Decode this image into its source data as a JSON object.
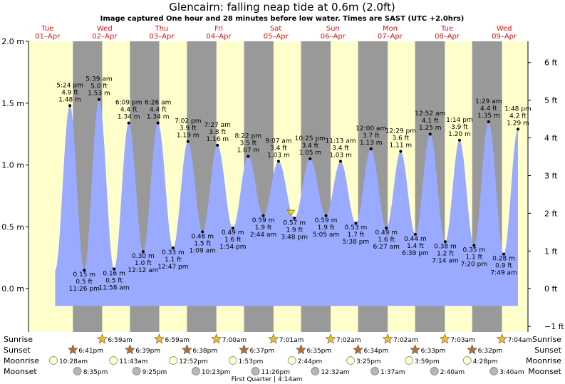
{
  "title": "Glencairn: falling  neap tide at 0.6m (2.0ft)",
  "subtitle": "Image captured One hour and 28 minutes before low water. Times are SAST (UTC +2.0hrs)",
  "days": [
    {
      "dow": "Tue",
      "date": "01–Apr"
    },
    {
      "dow": "Wed",
      "date": "02–Apr"
    },
    {
      "dow": "Thu",
      "date": "03–Apr"
    },
    {
      "dow": "Fri",
      "date": "04–Apr"
    },
    {
      "dow": "Sat",
      "date": "05–Apr"
    },
    {
      "dow": "Sun",
      "date": "06–Apr"
    },
    {
      "dow": "Mon",
      "date": "07–Apr"
    },
    {
      "dow": "Tue",
      "date": "08–Apr"
    },
    {
      "dow": "Wed",
      "date": "09–Apr"
    }
  ],
  "chart_data": {
    "type": "area",
    "x_unit": "hours from 01-Apr 00:00 SAST",
    "xlim": [
      0,
      210
    ],
    "ylim": [
      -0.35,
      2.0
    ],
    "y_left_ticks": [
      "2.0 m",
      "1.5 m",
      "1.0 m",
      "0.5 m",
      "0.0 m"
    ],
    "y_left_values": [
      2.0,
      1.5,
      1.0,
      0.5,
      0.0
    ],
    "y_right_ticks": [
      "6 ft",
      "5 ft",
      "4 ft",
      "3 ft",
      "2 ft",
      "1 ft",
      "0 ft",
      "−1 ft"
    ],
    "y_right_values_ft": [
      6,
      5,
      4,
      3,
      2,
      1,
      0,
      -1
    ],
    "tides": [
      {
        "t": 17.4,
        "m": 1.48,
        "type": "high",
        "time": "5:24 pm",
        "ft": "4.9 ft",
        "mlabel": "1.48 m"
      },
      {
        "t": 23.43,
        "m": 0.15,
        "type": "low",
        "time": "11:26 pm",
        "ft": "0.5 ft",
        "mlabel": "0.15 m"
      },
      {
        "t": 29.65,
        "m": 1.53,
        "type": "high",
        "time": "5:39 am",
        "ft": "5.0 ft",
        "mlabel": "1.53 m"
      },
      {
        "t": 35.97,
        "m": 0.16,
        "type": "low",
        "time": "11:58 am",
        "ft": "0.5 ft",
        "mlabel": "0.16 m"
      },
      {
        "t": 42.15,
        "m": 1.34,
        "type": "high",
        "time": "6:09 pm",
        "ft": "4.4 ft",
        "mlabel": "1.34 m"
      },
      {
        "t": 48.2,
        "m": 0.3,
        "type": "low",
        "time": "12:12 am",
        "ft": "1.0 ft",
        "mlabel": "0.30 m"
      },
      {
        "t": 54.43,
        "m": 1.34,
        "type": "high",
        "time": "6:26 am",
        "ft": "4.4 ft",
        "mlabel": "1.34 m"
      },
      {
        "t": 60.78,
        "m": 0.33,
        "type": "low",
        "time": "12:47 pm",
        "ft": "1.1 ft",
        "mlabel": "0.33 m"
      },
      {
        "t": 67.03,
        "m": 1.19,
        "type": "high",
        "time": "7:02 pm",
        "ft": "3.9 ft",
        "mlabel": "1.19 m"
      },
      {
        "t": 73.15,
        "m": 0.46,
        "type": "low",
        "time": "1:09 am",
        "ft": "1.5 ft",
        "mlabel": "0.46 m"
      },
      {
        "t": 79.45,
        "m": 1.16,
        "type": "high",
        "time": "7:27 am",
        "ft": "3.8 ft",
        "mlabel": "1.16 m"
      },
      {
        "t": 85.9,
        "m": 0.49,
        "type": "low",
        "time": "1:54 pm",
        "ft": "1.6 ft",
        "mlabel": "0.49 m"
      },
      {
        "t": 92.37,
        "m": 1.07,
        "type": "high",
        "time": "8:22 pm",
        "ft": "3.5 ft",
        "mlabel": "1.07 m"
      },
      {
        "t": 98.73,
        "m": 0.59,
        "type": "low",
        "time": "2:44 am",
        "ft": "1.9 ft",
        "mlabel": "0.59 m"
      },
      {
        "t": 105.12,
        "m": 1.03,
        "type": "high",
        "time": "9:07 am",
        "ft": "3.4 ft",
        "mlabel": "1.03 m"
      },
      {
        "t": 111.8,
        "m": 0.57,
        "type": "low",
        "time": "3:48 pm",
        "ft": "1.9 ft",
        "mlabel": "0.57 m"
      },
      {
        "t": 118.42,
        "m": 1.05,
        "type": "high",
        "time": "10:25 pm",
        "ft": "3.4 ft",
        "mlabel": "1.05 m"
      },
      {
        "t": 125.08,
        "m": 0.59,
        "type": "low",
        "time": "5:05 am",
        "ft": "1.9 ft",
        "mlabel": "0.59 m"
      },
      {
        "t": 131.22,
        "m": 1.03,
        "type": "high",
        "time": "11:13 am",
        "ft": "3.4 ft",
        "mlabel": "1.03 m"
      },
      {
        "t": 137.63,
        "m": 0.53,
        "type": "low",
        "time": "5:38 pm",
        "ft": "1.7 ft",
        "mlabel": "0.53 m"
      },
      {
        "t": 144.0,
        "m": 1.13,
        "type": "high",
        "time": "12:00 am",
        "ft": "3.7 ft",
        "mlabel": "1.13 m"
      },
      {
        "t": 150.45,
        "m": 0.49,
        "type": "low",
        "time": "6:27 am",
        "ft": "1.6 ft",
        "mlabel": "0.49 m"
      },
      {
        "t": 156.48,
        "m": 1.11,
        "type": "high",
        "time": "12:29 pm",
        "ft": "3.6 ft",
        "mlabel": "1.11 m"
      },
      {
        "t": 162.65,
        "m": 0.44,
        "type": "low",
        "time": "6:39 pm",
        "ft": "1.4 ft",
        "mlabel": "0.44 m"
      },
      {
        "t": 168.87,
        "m": 1.25,
        "type": "high",
        "time": "12:52 am",
        "ft": "4.1 ft",
        "mlabel": "1.25 m"
      },
      {
        "t": 175.23,
        "m": 0.38,
        "type": "low",
        "time": "7:14 am",
        "ft": "1.2 ft",
        "mlabel": "0.38 m"
      },
      {
        "t": 181.23,
        "m": 1.2,
        "type": "high",
        "time": "1:14 pm",
        "ft": "3.9 ft",
        "mlabel": "1.20 m"
      },
      {
        "t": 187.33,
        "m": 0.35,
        "type": "low",
        "time": "7:20 pm",
        "ft": "1.1 ft",
        "mlabel": "0.35 m"
      },
      {
        "t": 193.48,
        "m": 1.35,
        "type": "high",
        "time": "1:29 am",
        "ft": "4.4 ft",
        "mlabel": "1.35 m"
      },
      {
        "t": 199.82,
        "m": 0.28,
        "type": "low",
        "time": "7:49 am",
        "ft": "0.9 ft",
        "mlabel": "0.28 m"
      },
      {
        "t": 205.8,
        "m": 1.29,
        "type": "high",
        "time": "1:48 pm",
        "ft": "4.2 ft",
        "mlabel": "1.29 m"
      }
    ],
    "current_marker": {
      "t": 110.33,
      "m": 0.6
    },
    "night_bands": [
      [
        18.68,
        30.98
      ],
      [
        42.65,
        54.98
      ],
      [
        66.63,
        79.0
      ],
      [
        90.62,
        103.02
      ],
      [
        114.58,
        127.03
      ],
      [
        138.57,
        151.03
      ],
      [
        162.55,
        175.05
      ],
      [
        186.53,
        199.07
      ]
    ]
  },
  "rows": {
    "sunrise_label": "Sunrise",
    "sunset_label": "Sunset",
    "moonrise_label": "Moonrise",
    "moonset_label": "Moonset",
    "sunrise": [
      {
        "t": 30.98,
        "text": "6:59am"
      },
      {
        "t": 54.98,
        "text": "6:59am"
      },
      {
        "t": 79.0,
        "text": "7:00am"
      },
      {
        "t": 103.02,
        "text": "7:01am"
      },
      {
        "t": 127.03,
        "text": "7:02am"
      },
      {
        "t": 151.03,
        "text": "7:02am"
      },
      {
        "t": 175.05,
        "text": "7:03am"
      },
      {
        "t": 199.07,
        "text": "7:04am"
      }
    ],
    "sunset": [
      {
        "t": 18.68,
        "text": "6:41pm"
      },
      {
        "t": 42.65,
        "text": "6:39pm"
      },
      {
        "t": 66.63,
        "text": "6:38pm"
      },
      {
        "t": 90.62,
        "text": "6:37pm"
      },
      {
        "t": 114.58,
        "text": "6:35pm"
      },
      {
        "t": 138.57,
        "text": "6:34pm"
      },
      {
        "t": 162.55,
        "text": "6:33pm"
      },
      {
        "t": 186.53,
        "text": "6:32pm"
      }
    ],
    "moonrise": [
      {
        "t": 10.47,
        "text": "10:28am"
      },
      {
        "t": 35.72,
        "text": "11:43am"
      },
      {
        "t": 60.87,
        "text": "12:52pm"
      },
      {
        "t": 85.88,
        "text": "1:53pm"
      },
      {
        "t": 110.73,
        "text": "2:44pm"
      },
      {
        "t": 135.42,
        "text": "3:25pm"
      },
      {
        "t": 159.98,
        "text": "3:59pm"
      },
      {
        "t": 184.47,
        "text": "4:28pm"
      }
    ],
    "moonset": [
      {
        "t": 20.58,
        "text": "8:35pm"
      },
      {
        "t": 45.42,
        "text": "9:25pm"
      },
      {
        "t": 70.38,
        "text": "10:23pm"
      },
      {
        "t": 95.43,
        "text": "11:26pm"
      },
      {
        "t": 120.53,
        "text": "12:32am"
      },
      {
        "t": 145.62,
        "text": "1:37am"
      },
      {
        "t": 170.67,
        "text": "2:40am"
      },
      {
        "t": 195.67,
        "text": "3:40am"
      }
    ],
    "moon_phase": "First Quarter | 4:14am",
    "moon_phase_t": 100.23
  },
  "colors": {
    "day": "#ffffcc",
    "night": "#999999",
    "water": "#99aaff",
    "day_label": "#e01010",
    "sun_icon": "#f0c020",
    "sunset_icon": "#b0703a",
    "moonrise_icon": "#ffffcc",
    "moonset_icon": "#b8b8b0"
  }
}
